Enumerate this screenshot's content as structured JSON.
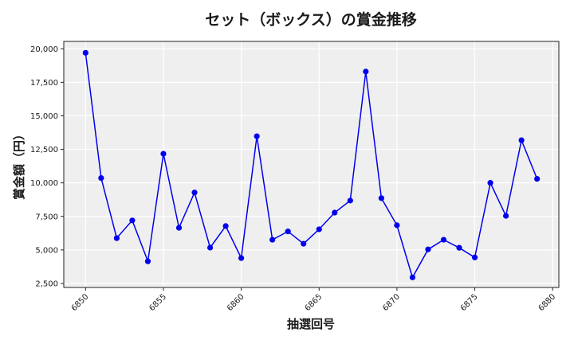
{
  "chart_data": {
    "type": "line",
    "title": "セット（ボックス）の賞金推移",
    "xlabel": "抽選回号",
    "ylabel": "賞金額（円）",
    "x": [
      6850,
      6851,
      6852,
      6853,
      6854,
      6855,
      6856,
      6857,
      6858,
      6859,
      6860,
      6861,
      6862,
      6863,
      6864,
      6865,
      6866,
      6867,
      6868,
      6869,
      6870,
      6871,
      6872,
      6873,
      6874,
      6875,
      6876,
      6877,
      6878,
      6879
    ],
    "series": [
      {
        "name": "賞金額",
        "color": "#0000ee",
        "values": [
          19700,
          10360,
          5880,
          7200,
          4150,
          12170,
          6650,
          9280,
          5170,
          6780,
          4390,
          13480,
          5760,
          6380,
          5460,
          6540,
          7780,
          8680,
          18300,
          8860,
          6840,
          2950,
          5040,
          5760,
          5160,
          4440,
          10000,
          7540,
          13180,
          10300
        ]
      }
    ],
    "xlim": [
      6848.6,
      6880.4
    ],
    "ylim": [
      2200,
      20550
    ],
    "xticks": [
      6850,
      6855,
      6860,
      6865,
      6870,
      6875,
      6880
    ],
    "xtick_labels": [
      "6850",
      "6855",
      "6860",
      "6865",
      "6870",
      "6875",
      "6880"
    ],
    "yticks": [
      2500,
      5000,
      7500,
      10000,
      12500,
      15000,
      17500,
      20000
    ],
    "ytick_labels": [
      "2,500",
      "5,000",
      "7,500",
      "10,000",
      "12,500",
      "15,000",
      "17,500",
      "20,000"
    ],
    "grid": true,
    "legend": null,
    "colors": {
      "plot_bg": "#efefef",
      "grid": "#ffffff",
      "line": "#0000ee",
      "marker": "#0000ee"
    }
  }
}
